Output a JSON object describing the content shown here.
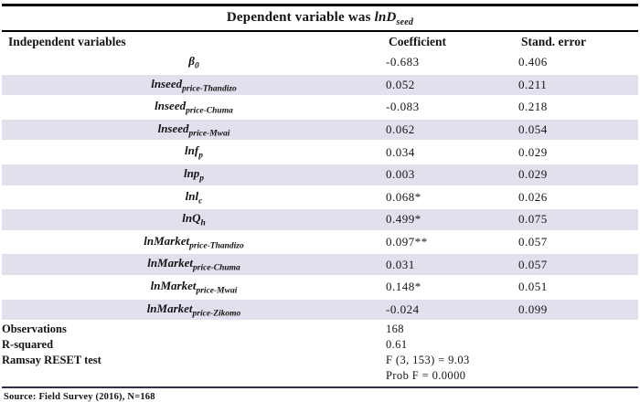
{
  "title": {
    "prefix": "Dependent variable was ",
    "dep_var": "lnD",
    "dep_var_sub": "seed"
  },
  "columns": {
    "variables": "Independent variables",
    "coefficient": "Coefficient",
    "stderr": "Stand. error"
  },
  "colors": {
    "shaded_row": "#e4dfec",
    "top_rule": "#000000",
    "source_rule": "#382a4e",
    "text": "#141414"
  },
  "rows": [
    {
      "name": "β",
      "sub": "0",
      "coef": "-0.683",
      "se": "0.406",
      "shaded": false
    },
    {
      "name": "lnseed",
      "sub": "price-Thandizo",
      "coef": "0.052",
      "se": "0.211",
      "shaded": true
    },
    {
      "name": "lnseed",
      "sub": "price-Chuma",
      "coef": "-0.083",
      "se": "0.218",
      "shaded": false
    },
    {
      "name": "lnseed",
      "sub": "price-Mwai",
      "coef": "0.062",
      "se": "0.054",
      "shaded": true
    },
    {
      "name": "lnf",
      "sub": "p",
      "coef": "0.034",
      "se": "0.029",
      "shaded": false
    },
    {
      "name": "lnp",
      "sub": "p",
      "coef": "0.003",
      "se": "0.029",
      "shaded": true
    },
    {
      "name": "lnl",
      "sub": "c",
      "coef": "0.068*",
      "se": "0.026",
      "shaded": false
    },
    {
      "name": "lnQ",
      "sub": "h",
      "coef": "0.499*",
      "se": "0.075",
      "shaded": true
    },
    {
      "name": "lnMarket",
      "sub": "price-Thandizo",
      "coef": "0.097**",
      "se": "0.057",
      "shaded": false
    },
    {
      "name": "lnMarket",
      "sub": "price-Chuma",
      "coef": "0.031",
      "se": "0.057",
      "shaded": true
    },
    {
      "name": "lnMarket",
      "sub": "price-Mwai",
      "coef": "0.148*",
      "se": "0.051",
      "shaded": false
    },
    {
      "name": "lnMarket",
      "sub": "price-Zikomo",
      "coef": "-0.024",
      "se": "0.099",
      "shaded": true
    }
  ],
  "summary": [
    {
      "label": "Observations",
      "value": "168"
    },
    {
      "label": "R-squared",
      "value": "0.61"
    },
    {
      "label": "Ramsay RESET test",
      "value": "F (3, 153) = 9.03"
    },
    {
      "label": "",
      "value": "Prob F =  0.0000"
    }
  ],
  "source_note": "Source: Field Survey (2016), N=168"
}
